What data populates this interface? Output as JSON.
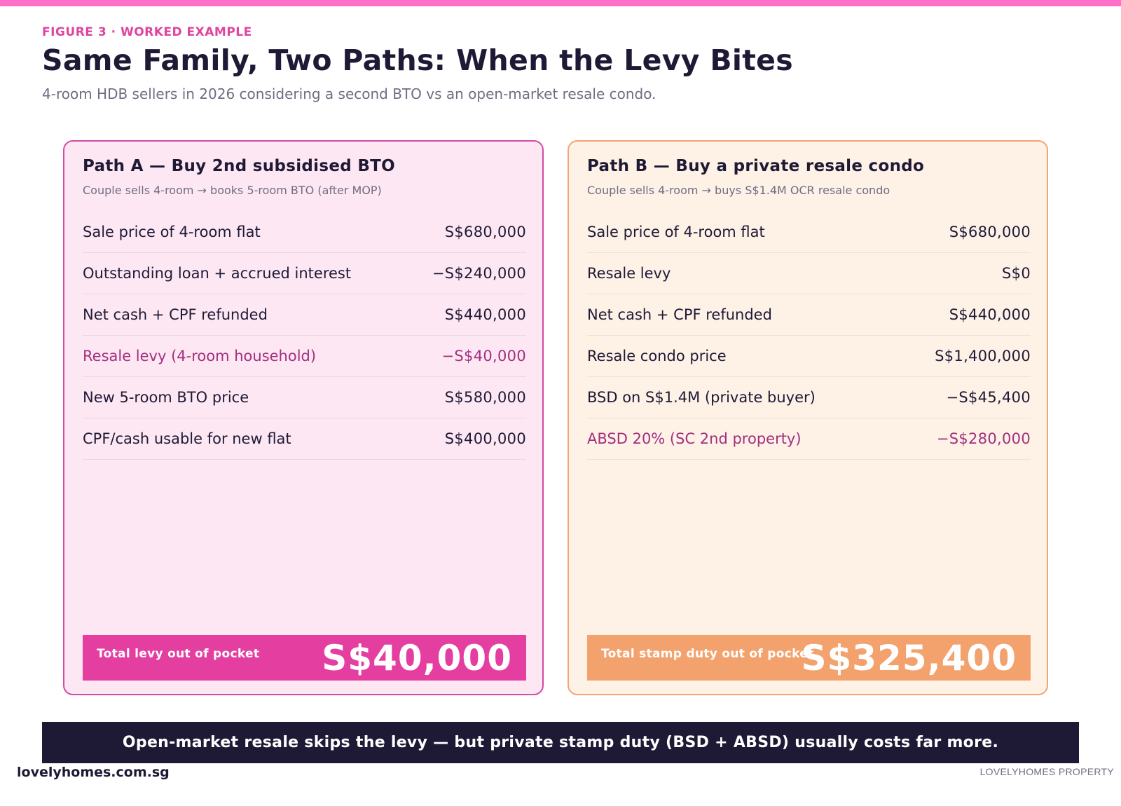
{
  "header": {
    "eyebrow": "FIGURE 3 · WORKED EXAMPLE",
    "title": "Same Family, Two Paths: When the Levy Bites",
    "subtitle": "4-room HDB sellers in 2026 considering a second BTO vs an open-market resale condo."
  },
  "path_a": {
    "title": "Path A — Buy 2nd subsidised BTO",
    "subtitle": "Couple sells 4-room → books 5-room BTO (after MOP)",
    "rows": [
      {
        "label": "Sale price of 4-room flat",
        "value": "S$680,000"
      },
      {
        "label": "Outstanding loan + accrued interest",
        "value": "−S$240,000"
      },
      {
        "label": "Net cash + CPF refunded",
        "value": "S$440,000"
      },
      {
        "label": "Resale levy (4-room household)",
        "value": "−S$40,000"
      },
      {
        "label": "New 5-room BTO price",
        "value": "S$580,000"
      },
      {
        "label": "CPF/cash usable for new flat",
        "value": "S$400,000"
      }
    ],
    "total_label": "Total levy out of pocket",
    "total_value": "S$40,000"
  },
  "path_b": {
    "title": "Path B — Buy a private resale condo",
    "subtitle": "Couple sells 4-room → buys S$1.4M OCR resale condo",
    "rows": [
      {
        "label": "Sale price of 4-room flat",
        "value": "S$680,000"
      },
      {
        "label": "Resale levy",
        "value": "S$0"
      },
      {
        "label": "Net cash + CPF refunded",
        "value": "S$440,000"
      },
      {
        "label": "Resale condo price",
        "value": "S$1,400,000"
      },
      {
        "label": "BSD on S$1.4M (private buyer)",
        "value": "−S$45,400"
      },
      {
        "label": "ABSD 20% (SC 2nd property)",
        "value": "−S$280,000"
      }
    ],
    "total_label": "Total stamp duty out of pocket",
    "total_value": "S$325,400"
  },
  "banner": "Open-market resale skips the levy — but private stamp duty (BSD + ABSD) usually costs far more.",
  "footer": {
    "site": "lovelyhomes.com.sg",
    "brand": "LOVELYHOMES PROPERTY"
  },
  "colors": {
    "accent_pink": "#e43ea1",
    "accent_orange": "#f3a26e",
    "navy": "#1e1a36",
    "highlight_text": "#a2307f"
  }
}
